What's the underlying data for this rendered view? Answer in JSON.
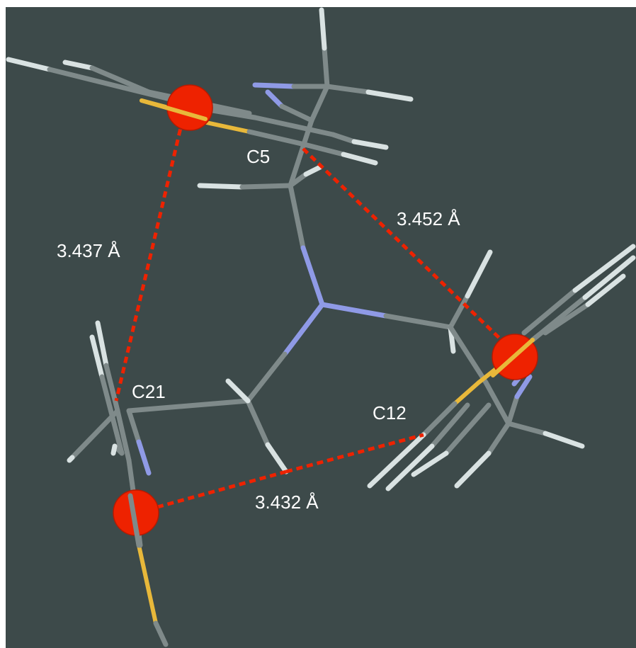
{
  "colors": {
    "background": "#3d4a4a",
    "page": "#ffffff",
    "carbon": "#7f8a8a",
    "hydrogen": "#d9e2e2",
    "nitrogen": "#8f9ae6",
    "sulfur": "#e8b83a",
    "centroid": "#ee2200",
    "contact": "#ee2200",
    "label": "#ffffff"
  },
  "labels": {
    "c5": "C5",
    "c21": "C21",
    "c12": "C12"
  },
  "distances": {
    "top_right": "3.452 Å",
    "left": "3.437 Å",
    "bottom": "3.432 Å"
  }
}
